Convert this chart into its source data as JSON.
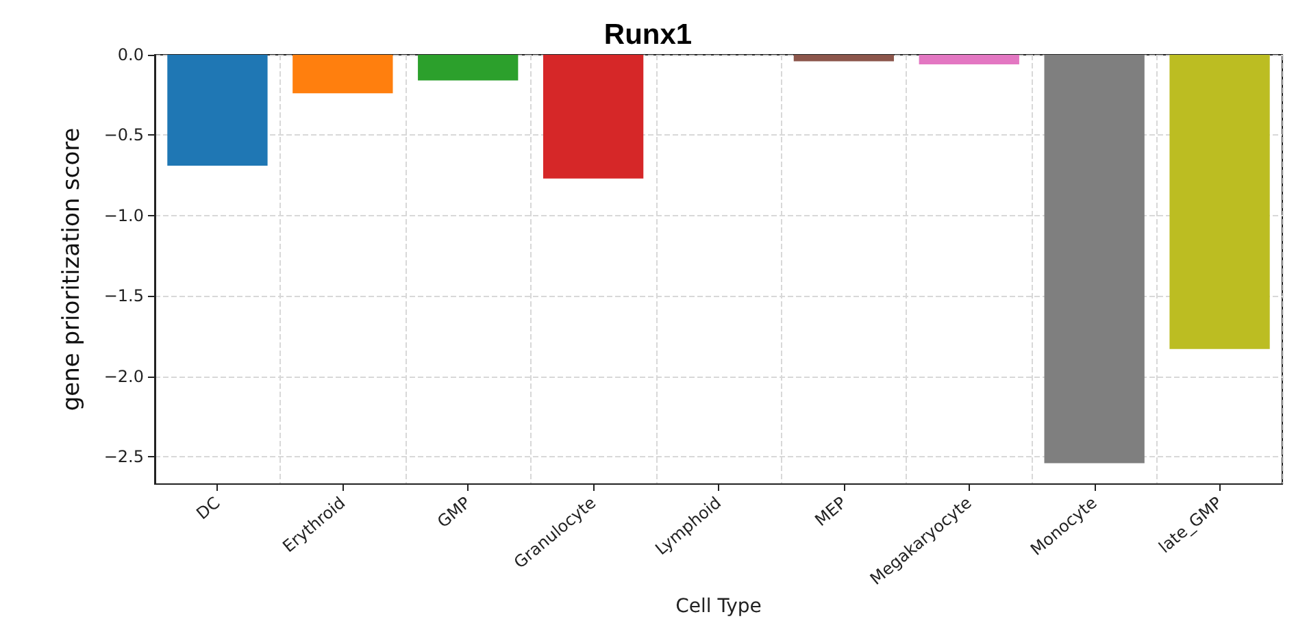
{
  "chart_data": {
    "type": "bar",
    "title": "Runx1",
    "xlabel": "Cell Type",
    "ylabel": "gene prioritization score",
    "categories": [
      "DC",
      "Erythroid",
      "GMP",
      "Granulocyte",
      "Lymphoid",
      "MEP",
      "Megakaryocyte",
      "Monocyte",
      "late_GMP"
    ],
    "values": [
      -0.69,
      -0.24,
      -0.16,
      -0.77,
      0,
      -0.04,
      -0.06,
      -2.54,
      -1.83
    ],
    "colors": [
      "#1f77b4",
      "#ff7f0e",
      "#2ca02c",
      "#d62728",
      "#9467bd",
      "#8c564b",
      "#e377c2",
      "#7f7f7f",
      "#bcbd22"
    ],
    "ylim": [
      -2.67,
      0
    ],
    "yticks": [
      {
        "value": 0,
        "label": "0.0"
      },
      {
        "value": -0.5,
        "label": "−0.5"
      },
      {
        "value": -1,
        "label": "−1.0"
      },
      {
        "value": -1.5,
        "label": "−1.5"
      },
      {
        "value": -2,
        "label": "−2.0"
      },
      {
        "value": -2.5,
        "label": "−2.5"
      }
    ],
    "grid": true
  }
}
